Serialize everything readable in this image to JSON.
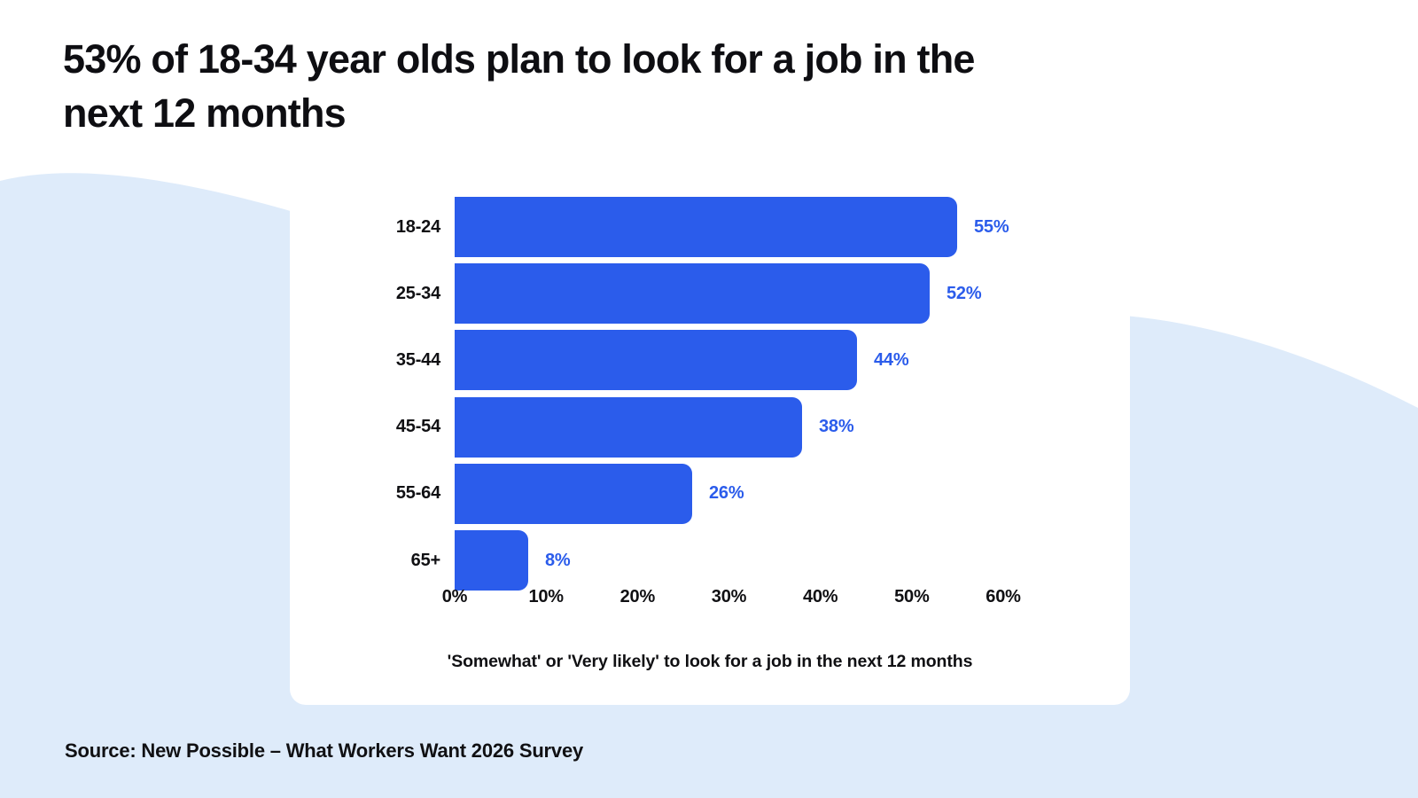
{
  "page": {
    "title_line1": "53% of 18-34 year olds plan to look for a job in the",
    "title_line2": "next 12 months",
    "source_text": "Source: New Possible – What Workers Want 2026 Survey"
  },
  "colors": {
    "bar_blue": "#2b5ceb",
    "value_label_blue": "#2b5ceb",
    "background_blue": "#deebfa",
    "card_white": "#ffffff",
    "title_black": "#0e0e12"
  },
  "chart_data": {
    "type": "bar",
    "orientation": "horizontal",
    "title": "",
    "categories": [
      "18-24",
      "25-34",
      "35-44",
      "45-54",
      "55-64",
      "65+"
    ],
    "values": [
      55,
      52,
      44,
      38,
      26,
      8
    ],
    "value_labels": [
      "55%",
      "52%",
      "44%",
      "38%",
      "26%",
      "8%"
    ],
    "x_tick_values": [
      0,
      10,
      20,
      30,
      40,
      50,
      60
    ],
    "x_tick_labels": [
      "0%",
      "10%",
      "20%",
      "30%",
      "40%",
      "50%",
      "60%"
    ],
    "xlim": [
      0,
      60
    ],
    "ylabel": "",
    "xlabel": "",
    "grid": false,
    "legend": false,
    "caption": "'Somewhat' or 'Very likely' to look for a job in the next 12 months"
  }
}
